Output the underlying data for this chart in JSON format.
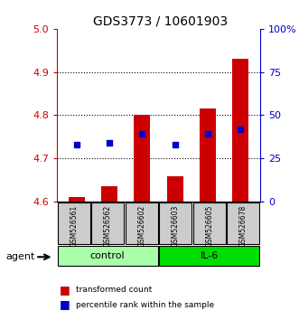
{
  "title": "GDS3773 / 10601903",
  "samples": [
    "GSM526561",
    "GSM526562",
    "GSM526602",
    "GSM526603",
    "GSM526605",
    "GSM526678"
  ],
  "bar_values": [
    4.61,
    4.635,
    4.8,
    4.658,
    4.815,
    4.93
  ],
  "bar_base": 4.6,
  "percentile_values": [
    33,
    34,
    39,
    33,
    39,
    42
  ],
  "groups": [
    {
      "label": "control",
      "indices": [
        0,
        1,
        2
      ],
      "color": "#aaffaa"
    },
    {
      "label": "IL-6",
      "indices": [
        3,
        4,
        5
      ],
      "color": "#00dd00"
    }
  ],
  "ylim_left": [
    4.6,
    5.0
  ],
  "ylim_right": [
    0,
    100
  ],
  "yticks_left": [
    4.6,
    4.7,
    4.8,
    4.9,
    5.0
  ],
  "yticks_right": [
    0,
    25,
    50,
    75,
    100
  ],
  "ytick_labels_right": [
    "0",
    "25",
    "50",
    "75",
    "100%"
  ],
  "bar_color": "#cc0000",
  "dot_color": "#0000cc",
  "left_tick_color": "#cc0000",
  "right_tick_color": "#0000cc",
  "sample_bg_color": "#cccccc",
  "legend_bar_label": "transformed count",
  "legend_dot_label": "percentile rank within the sample",
  "agent_label": "agent",
  "bar_width": 0.5
}
